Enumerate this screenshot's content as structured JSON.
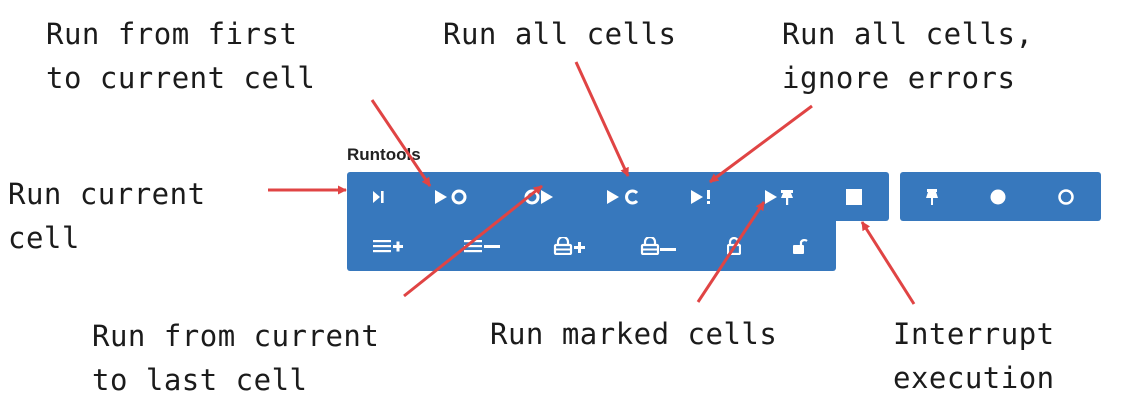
{
  "toolbar": {
    "title": "Runtools",
    "accent_color": "#3778bd",
    "row1_buttons": [
      {
        "icon": "run-current-icon"
      },
      {
        "icon": "run-first-to-current-icon"
      },
      {
        "icon": "run-current-to-last-icon"
      },
      {
        "icon": "run-all-icon"
      },
      {
        "icon": "run-all-ignore-errors-icon"
      },
      {
        "icon": "run-marked-icon"
      },
      {
        "icon": "stop-icon"
      }
    ],
    "marker_buttons": [
      {
        "icon": "pin-icon"
      },
      {
        "icon": "filled-circle-icon"
      },
      {
        "icon": "empty-circle-icon"
      }
    ],
    "row2_buttons": [
      {
        "icon": "lines-plus-icon"
      },
      {
        "icon": "lines-minus-icon"
      },
      {
        "icon": "lock-plus-icon"
      },
      {
        "icon": "lock-minus-icon"
      },
      {
        "icon": "lock-closed-icon"
      },
      {
        "icon": "lock-open-icon"
      }
    ]
  },
  "annotations": {
    "run_first_to_current": [
      "Run from first",
      "to current cell"
    ],
    "run_all": "Run all cells",
    "run_all_ignore_errors": [
      "Run all cells,",
      "ignore errors"
    ],
    "run_current": [
      "Run current",
      "cell"
    ],
    "run_current_to_last": [
      "Run from current",
      "to last cell"
    ],
    "run_marked": "Run marked cells",
    "interrupt": [
      "Interrupt",
      "execution"
    ]
  },
  "arrow_color": "#e04444"
}
